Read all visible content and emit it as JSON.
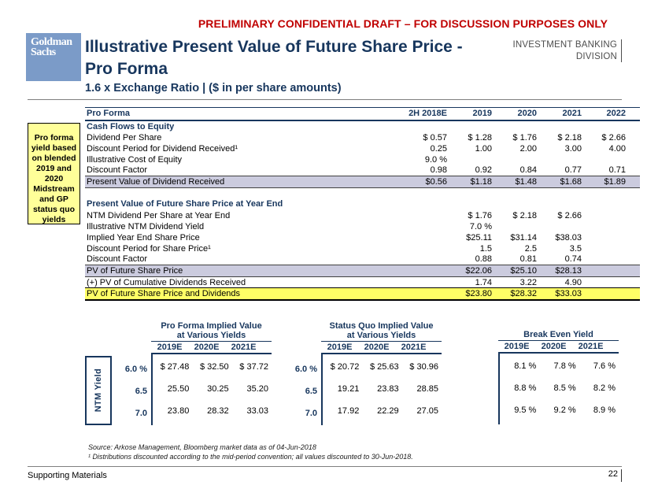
{
  "colors": {
    "navy": "#17365D",
    "red": "#C00000",
    "gray_row": "#CBCBDE",
    "yellow_row": "#FFFF66",
    "callout_bg": "#FFFF99",
    "logo_blue": "#7B9BC8"
  },
  "header": {
    "disclaimer": "PRELIMINARY CONFIDENTIAL DRAFT – FOR DISCUSSION PURPOSES ONLY",
    "logo_line1": "Goldman",
    "logo_line2": "Sachs",
    "title_line1": "Illustrative Present Value of Future Share Price -",
    "title_line2": "Pro Forma",
    "division_line1": "INVESTMENT BANKING",
    "division_line2": "DIVISION",
    "subtitle": "1.6 x Exchange Ratio | ($ in per share amounts)"
  },
  "callout": {
    "text": "Pro forma yield based on blended 2019 and 2020 Midstream and GP status quo yields"
  },
  "main_table": {
    "columns": [
      "Pro Forma",
      "2H 2018E",
      "2019",
      "2020",
      "2021",
      "2022"
    ],
    "sections": [
      {
        "title": "Cash Flows to Equity",
        "rows": [
          {
            "label": "Dividend Per Share",
            "values": [
              "$ 0.57",
              "$ 1.28",
              "$ 1.76",
              "$ 2.18",
              "$ 2.66"
            ]
          },
          {
            "label": "Discount Period for Dividend Received¹",
            "values": [
              "0.25",
              "1.00",
              "2.00",
              "3.00",
              "4.00"
            ]
          },
          {
            "label": "Illustrative Cost of Equity",
            "values": [
              "9.0 %",
              "",
              "",
              "",
              ""
            ]
          },
          {
            "label": "Discount Factor",
            "values": [
              "0.98",
              "0.92",
              "0.84",
              "0.77",
              "0.71"
            ]
          },
          {
            "label": "Present Value of Dividend Received",
            "values": [
              "$0.56",
              "$1.18",
              "$1.48",
              "$1.68",
              "$1.89"
            ],
            "style": "gray"
          }
        ]
      },
      {
        "title": "Present Value of Future Share Price at Year End",
        "rows": [
          {
            "label": "NTM Dividend Per Share at Year End",
            "values": [
              "",
              "$ 1.76",
              "$ 2.18",
              "$ 2.66",
              ""
            ]
          },
          {
            "label": "Illustrative NTM Dividend Yield",
            "values": [
              "",
              "7.0 %",
              "",
              "",
              ""
            ]
          },
          {
            "label": "Implied Year End Share Price",
            "values": [
              "",
              "$25.11",
              "$31.14",
              "$38.03",
              ""
            ]
          },
          {
            "label": "Discount Period for Share Price¹",
            "values": [
              "",
              "1.5",
              "2.5",
              "3.5",
              ""
            ]
          },
          {
            "label": "Discount Factor",
            "values": [
              "",
              "0.88",
              "0.81",
              "0.74",
              ""
            ]
          },
          {
            "label": "PV of Future Share Price",
            "values": [
              "",
              "$22.06",
              "$25.10",
              "$28.13",
              ""
            ],
            "style": "gray"
          },
          {
            "label": "(+) PV of Cumulative Dividends Received",
            "values": [
              "",
              "1.74",
              "3.22",
              "4.90",
              ""
            ]
          },
          {
            "label": "PV of Future Share Price and Dividends",
            "values": [
              "",
              "$23.80",
              "$28.32",
              "$33.03",
              ""
            ],
            "style": "yellow"
          }
        ]
      }
    ]
  },
  "matrix": {
    "yield_axis_label": "NTM Yield",
    "yield_labels": [
      "6.0 %",
      "6.5",
      "7.0"
    ],
    "tables": [
      {
        "title_line1": "Pro Forma Implied Value",
        "title_line2": "at Various Yields",
        "columns": [
          "2019E",
          "2020E",
          "2021E"
        ],
        "rows": [
          [
            "$ 27.48",
            "$ 32.50",
            "$ 37.72"
          ],
          [
            "25.50",
            "30.25",
            "35.20"
          ],
          [
            "23.80",
            "28.32",
            "33.03"
          ]
        ]
      },
      {
        "title_line1": "Status Quo Implied Value",
        "title_line2": "at Various Yields",
        "columns": [
          "2019E",
          "2020E",
          "2021E"
        ],
        "rows": [
          [
            "$ 20.72",
            "$ 25.63",
            "$ 30.96"
          ],
          [
            "19.21",
            "23.83",
            "28.85"
          ],
          [
            "17.92",
            "22.29",
            "27.05"
          ]
        ]
      },
      {
        "title_line1": "Break Even Yield",
        "title_line2": "",
        "columns": [
          "2019E",
          "2020E",
          "2021E"
        ],
        "rows": [
          [
            "8.1 %",
            "7.8 %",
            "7.6 %"
          ],
          [
            "8.8 %",
            "8.5 %",
            "8.2 %"
          ],
          [
            "9.5 %",
            "9.2 %",
            "8.9 %"
          ]
        ]
      }
    ]
  },
  "footnotes": {
    "source": "Source: Arkose Management, Bloomberg market data as of 04-Jun-2018",
    "note1": "¹ Distributions discounted according to the mid-period convention; all values discounted to 30-Jun-2018."
  },
  "footer": {
    "left": "Supporting Materials",
    "page": "22"
  }
}
